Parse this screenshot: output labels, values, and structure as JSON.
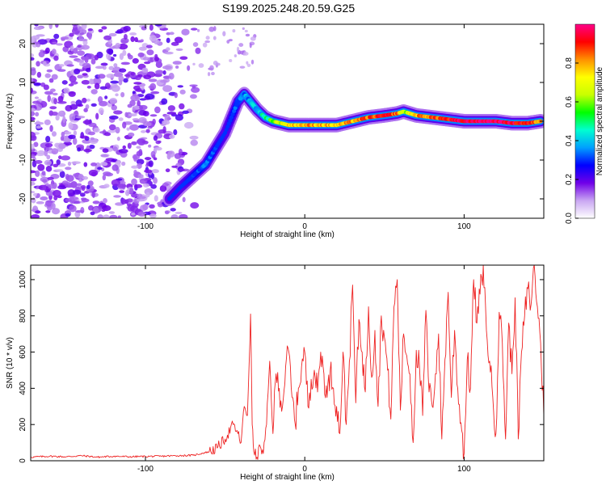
{
  "title": "S199.2025.248.20.59.G25",
  "chart_data": [
    {
      "type": "heatmap",
      "xlabel": "Height of straight line (km)",
      "ylabel": "Frequency (Hz)",
      "xlim": [
        -172,
        150
      ],
      "ylim": [
        -25,
        25
      ],
      "xticks": [
        -100,
        0,
        100
      ],
      "yticks": [
        -20,
        -10,
        0,
        10,
        20
      ],
      "colorbar": {
        "label": "Normalized spectral amplitude",
        "range": [
          0,
          1
        ],
        "ticks": [
          0.0,
          0.2,
          0.4,
          0.6,
          0.8
        ],
        "colors": [
          "#ffffff",
          "#c9a6f2",
          "#7000e8",
          "#0000ff",
          "#00a0ff",
          "#00ffd0",
          "#00ff00",
          "#c8ff00",
          "#ffff00",
          "#ff9000",
          "#ff0000",
          "#ff0088"
        ]
      },
      "ridge": {
        "height_km": [
          -85,
          -78,
          -70,
          -62,
          -56,
          -50,
          -46,
          -42,
          -38,
          -34,
          -30,
          -25,
          -20,
          -10,
          0,
          10,
          20,
          30,
          40,
          50,
          58,
          62,
          70,
          80,
          90,
          100,
          110,
          120,
          130,
          140,
          148
        ],
        "frequency_hz": [
          -20,
          -17,
          -14,
          -11,
          -7,
          -3,
          1,
          5,
          7,
          5,
          3,
          1,
          0,
          -1,
          -1,
          -1,
          -1,
          0,
          1,
          1.5,
          2,
          2.5,
          1.5,
          1,
          0.5,
          0,
          0,
          0,
          -0.5,
          -0.5,
          0
        ],
        "amplitude": [
          0.2,
          0.2,
          0.25,
          0.3,
          0.25,
          0.2,
          0.25,
          0.3,
          0.35,
          0.4,
          0.4,
          0.45,
          0.6,
          0.75,
          0.8,
          0.8,
          0.75,
          0.8,
          0.85,
          0.9,
          0.85,
          0.6,
          0.8,
          0.85,
          0.9,
          0.95,
          1.0,
          1.0,
          0.95,
          0.9,
          0.8
        ]
      }
    },
    {
      "type": "line",
      "xlabel": "Height of straight line (km)",
      "ylabel": "SNR (10 * v/v)",
      "xlim": [
        -172,
        150
      ],
      "ylim": [
        0,
        1080
      ],
      "xticks": [
        -100,
        0,
        100
      ],
      "yticks": [
        0,
        200,
        400,
        600,
        800,
        1000
      ],
      "color": "#ee2222",
      "series": [
        {
          "name": "SNR",
          "x": [
            -172,
            -160,
            -150,
            -140,
            -130,
            -120,
            -110,
            -100,
            -90,
            -80,
            -70,
            -60,
            -55,
            -50,
            -45,
            -42,
            -40,
            -38,
            -36,
            -34,
            -33,
            -32,
            -30,
            -28,
            -26,
            -24,
            -22,
            -20,
            -18,
            -16,
            -14,
            -12,
            -10,
            -8,
            -6,
            -4,
            -2,
            0,
            2,
            4,
            6,
            8,
            10,
            12,
            14,
            16,
            18,
            20,
            22,
            24,
            26,
            28,
            30,
            32,
            34,
            36,
            38,
            40,
            42,
            44,
            46,
            48,
            50,
            52,
            54,
            56,
            58,
            60,
            62,
            64,
            66,
            68,
            70,
            72,
            74,
            76,
            78,
            80,
            82,
            84,
            86,
            88,
            90,
            92,
            94,
            96,
            98,
            100,
            102,
            104,
            106,
            108,
            110,
            112,
            114,
            116,
            118,
            120,
            122,
            124,
            126,
            128,
            130,
            132,
            134,
            136,
            138,
            140,
            142,
            144,
            146,
            148,
            150
          ],
          "values": [
            20,
            25,
            22,
            28,
            20,
            25,
            22,
            24,
            25,
            28,
            30,
            50,
            70,
            120,
            200,
            150,
            100,
            300,
            250,
            810,
            200,
            50,
            20,
            80,
            40,
            200,
            550,
            150,
            480,
            400,
            300,
            520,
            600,
            350,
            200,
            400,
            520,
            600,
            300,
            450,
            500,
            380,
            600,
            480,
            350,
            500,
            400,
            300,
            150,
            600,
            200,
            550,
            970,
            320,
            780,
            600,
            380,
            850,
            460,
            720,
            300,
            800,
            680,
            500,
            230,
            850,
            1000,
            280,
            700,
            580,
            480,
            100,
            610,
            520,
            250,
            830,
            380,
            300,
            480,
            700,
            120,
            560,
            930,
            350,
            720,
            400,
            210,
            40,
            560,
            400,
            1000,
            760,
            920,
            1080,
            720,
            550,
            350,
            150,
            820,
            650,
            120,
            760,
            480,
            900,
            120,
            600,
            800,
            950,
            860,
            1080,
            850,
            650,
            250
          ]
        }
      ]
    }
  ]
}
